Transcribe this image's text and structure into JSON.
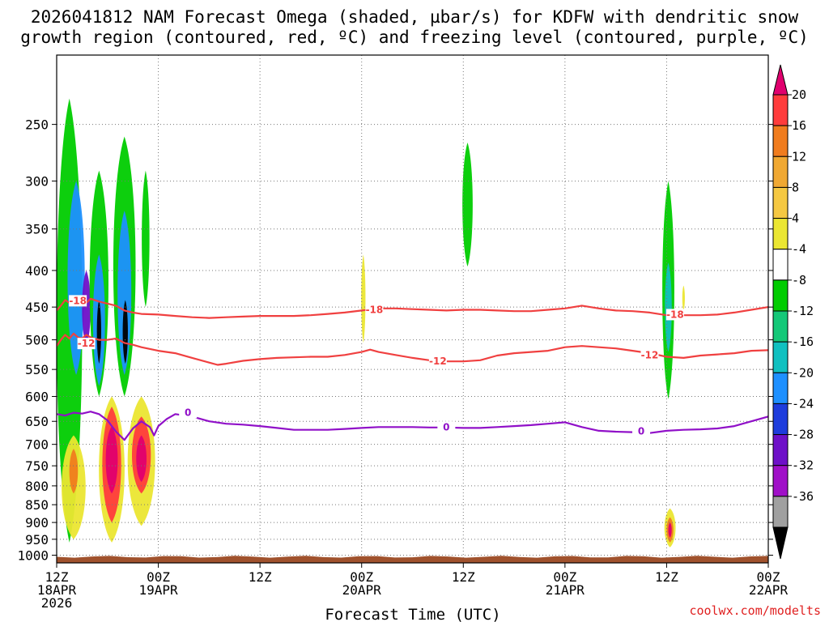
{
  "chart_data": {
    "type": "time-height cross-section (contour + shaded)",
    "title_line1": "2026041812 NAM Forecast Omega (shaded, µbar/s) for KDFW with dendritic snow",
    "title_line2": "growth region (contoured, red, ºC) and freezing level (contoured, purple, ºC)",
    "xlabel": "Forecast Time (UTC)",
    "credit": "coolwx.com/modelts",
    "x_ticks": [
      {
        "h": 0,
        "l1": "12Z",
        "l2": "18APR",
        "l3": "2026"
      },
      {
        "h": 12,
        "l1": "00Z",
        "l2": "19APR",
        "l3": ""
      },
      {
        "h": 24,
        "l1": "12Z",
        "l2": "",
        "l3": ""
      },
      {
        "h": 36,
        "l1": "00Z",
        "l2": "20APR",
        "l3": ""
      },
      {
        "h": 48,
        "l1": "12Z",
        "l2": "",
        "l3": ""
      },
      {
        "h": 60,
        "l1": "00Z",
        "l2": "21APR",
        "l3": ""
      },
      {
        "h": 72,
        "l1": "12Z",
        "l2": "",
        "l3": ""
      },
      {
        "h": 84,
        "l1": "00Z",
        "l2": "22APR",
        "l3": ""
      }
    ],
    "x_range_hours": [
      0,
      84
    ],
    "y_ticks_hPa": [
      250,
      300,
      350,
      400,
      450,
      500,
      550,
      600,
      650,
      700,
      750,
      800,
      850,
      900,
      950,
      1000
    ],
    "y_range_hPa": [
      200,
      1025
    ],
    "colorbar": {
      "levels": [
        "20",
        "16",
        "12",
        "8",
        "4",
        "-4",
        "-8",
        "-12",
        "-16",
        "-20",
        "-24",
        "-28",
        "-32",
        "-36"
      ],
      "colors": [
        "#e0006e",
        "#ff3c3c",
        "#f07c1e",
        "#f0a832",
        "#f5c842",
        "#ebe632",
        "#ffffff",
        "#00cc00",
        "#14c878",
        "#10c0c0",
        "#1e90ff",
        "#1e3cdc",
        "#6e10c8",
        "#a010c8",
        "#a0a0a0",
        "#000000"
      ]
    },
    "dgz_contours": [
      {
        "value": -18,
        "label": "-18",
        "color": "#f04040",
        "points": [
          [
            0,
            455
          ],
          [
            0.5,
            448
          ],
          [
            1,
            440
          ],
          [
            1.5,
            444
          ],
          [
            2,
            438
          ],
          [
            2.5,
            442
          ],
          [
            3,
            440
          ],
          [
            3.5,
            444
          ],
          [
            4,
            438
          ],
          [
            5,
            442
          ],
          [
            6,
            445
          ],
          [
            7,
            448
          ],
          [
            8,
            455
          ],
          [
            9,
            458
          ],
          [
            10,
            460
          ],
          [
            12,
            461
          ],
          [
            14,
            463
          ],
          [
            16,
            465
          ],
          [
            18,
            466
          ],
          [
            20,
            465
          ],
          [
            22,
            464
          ],
          [
            24,
            463
          ],
          [
            26,
            463
          ],
          [
            28,
            463
          ],
          [
            30,
            462
          ],
          [
            32,
            460
          ],
          [
            34,
            458
          ],
          [
            36,
            455
          ],
          [
            38,
            452
          ],
          [
            40,
            452
          ],
          [
            42,
            453
          ],
          [
            44,
            454
          ],
          [
            46,
            455
          ],
          [
            48,
            454
          ],
          [
            50,
            454
          ],
          [
            52,
            455
          ],
          [
            54,
            456
          ],
          [
            56,
            456
          ],
          [
            58,
            454
          ],
          [
            60,
            452
          ],
          [
            62,
            448
          ],
          [
            64,
            452
          ],
          [
            66,
            455
          ],
          [
            68,
            456
          ],
          [
            70,
            458
          ],
          [
            72,
            462
          ],
          [
            74,
            462
          ],
          [
            76,
            462
          ],
          [
            78,
            461
          ],
          [
            80,
            458
          ],
          [
            82,
            454
          ],
          [
            84,
            450
          ]
        ],
        "labels_at": [
          [
            2.5,
            441
          ],
          [
            37.5,
            454
          ],
          [
            73,
            461
          ]
        ]
      },
      {
        "value": -12,
        "label": "-12",
        "color": "#f04040",
        "points": [
          [
            0,
            510
          ],
          [
            0.5,
            500
          ],
          [
            1,
            492
          ],
          [
            1.5,
            498
          ],
          [
            2,
            490
          ],
          [
            2.5,
            496
          ],
          [
            3,
            498
          ],
          [
            3.5,
            492
          ],
          [
            4,
            496
          ],
          [
            5,
            500
          ],
          [
            6,
            500
          ],
          [
            7,
            498
          ],
          [
            8,
            505
          ],
          [
            9,
            508
          ],
          [
            10,
            512
          ],
          [
            12,
            518
          ],
          [
            14,
            522
          ],
          [
            16,
            530
          ],
          [
            18,
            538
          ],
          [
            19,
            542
          ],
          [
            20,
            540
          ],
          [
            22,
            535
          ],
          [
            24,
            532
          ],
          [
            26,
            530
          ],
          [
            28,
            529
          ],
          [
            30,
            528
          ],
          [
            32,
            528
          ],
          [
            34,
            525
          ],
          [
            36,
            520
          ],
          [
            37,
            516
          ],
          [
            38,
            520
          ],
          [
            40,
            525
          ],
          [
            42,
            530
          ],
          [
            44,
            534
          ],
          [
            46,
            536
          ],
          [
            48,
            536
          ],
          [
            50,
            534
          ],
          [
            52,
            526
          ],
          [
            54,
            522
          ],
          [
            56,
            520
          ],
          [
            58,
            518
          ],
          [
            60,
            512
          ],
          [
            62,
            510
          ],
          [
            64,
            512
          ],
          [
            66,
            514
          ],
          [
            68,
            518
          ],
          [
            70,
            522
          ],
          [
            72,
            528
          ],
          [
            74,
            530
          ],
          [
            76,
            526
          ],
          [
            78,
            524
          ],
          [
            80,
            522
          ],
          [
            82,
            518
          ],
          [
            84,
            517
          ]
        ],
        "labels_at": [
          [
            3.5,
            506
          ],
          [
            45,
            536
          ],
          [
            70,
            525
          ]
        ]
      }
    ],
    "freezing_level": {
      "value": 0,
      "label": "0",
      "color": "#9010c8",
      "points": [
        [
          0,
          635
        ],
        [
          1,
          638
        ],
        [
          2,
          632
        ],
        [
          3,
          634
        ],
        [
          4,
          630
        ],
        [
          5,
          635
        ],
        [
          6,
          648
        ],
        [
          7,
          672
        ],
        [
          8,
          690
        ],
        [
          9,
          665
        ],
        [
          10,
          650
        ],
        [
          11,
          662
        ],
        [
          11.5,
          680
        ],
        [
          12,
          660
        ],
        [
          13,
          645
        ],
        [
          14,
          635
        ],
        [
          16,
          640
        ],
        [
          18,
          650
        ],
        [
          20,
          655
        ],
        [
          22,
          657
        ],
        [
          24,
          660
        ],
        [
          26,
          664
        ],
        [
          28,
          668
        ],
        [
          30,
          668
        ],
        [
          32,
          668
        ],
        [
          34,
          666
        ],
        [
          36,
          664
        ],
        [
          38,
          662
        ],
        [
          40,
          662
        ],
        [
          42,
          662
        ],
        [
          44,
          663
        ],
        [
          46,
          663
        ],
        [
          48,
          664
        ],
        [
          50,
          664
        ],
        [
          52,
          662
        ],
        [
          54,
          660
        ],
        [
          56,
          658
        ],
        [
          58,
          655
        ],
        [
          60,
          652
        ],
        [
          62,
          662
        ],
        [
          64,
          670
        ],
        [
          66,
          672
        ],
        [
          68,
          673
        ],
        [
          70,
          675
        ],
        [
          72,
          670
        ],
        [
          74,
          668
        ],
        [
          76,
          667
        ],
        [
          78,
          665
        ],
        [
          80,
          660
        ],
        [
          82,
          650
        ],
        [
          84,
          640
        ]
      ],
      "labels_at": [
        [
          15.5,
          632
        ],
        [
          46,
          662
        ],
        [
          69,
          671
        ]
      ]
    },
    "omega_features": [
      {
        "name": "ascent-cell-1-outer",
        "cx_h": 1.5,
        "lo": 230,
        "hi": 960,
        "w": 3.0,
        "color": "#00cc00"
      },
      {
        "name": "ascent-cell-1-mid",
        "cx_h": 2.3,
        "lo": 300,
        "hi": 560,
        "w": 2.0,
        "color": "#1e90ff"
      },
      {
        "name": "ascent-cell-1-core",
        "cx_h": 3.5,
        "lo": 400,
        "hi": 510,
        "w": 1.0,
        "color": "#6e10c8"
      },
      {
        "name": "ascent-cell-2-outer",
        "cx_h": 5.0,
        "lo": 290,
        "hi": 600,
        "w": 2.2,
        "color": "#00cc00"
      },
      {
        "name": "ascent-cell-2-mid",
        "cx_h": 5.0,
        "lo": 380,
        "hi": 580,
        "w": 1.4,
        "color": "#1e90ff"
      },
      {
        "name": "ascent-cell-2-core",
        "cx_h": 5.0,
        "lo": 440,
        "hi": 540,
        "w": 0.5,
        "color": "#000000"
      },
      {
        "name": "ascent-cell-3-outer",
        "cx_h": 8.0,
        "lo": 260,
        "hi": 600,
        "w": 2.6,
        "color": "#00cc00"
      },
      {
        "name": "ascent-cell-3-mid",
        "cx_h": 8.0,
        "lo": 330,
        "hi": 560,
        "w": 1.6,
        "color": "#1e90ff"
      },
      {
        "name": "ascent-cell-3-core",
        "cx_h": 8.1,
        "lo": 440,
        "hi": 540,
        "w": 0.6,
        "color": "#000000"
      },
      {
        "name": "ascent-cell-4-outer",
        "cx_h": 10.5,
        "lo": 290,
        "hi": 450,
        "w": 0.9,
        "color": "#00cc00"
      },
      {
        "name": "ascent-cell-5-outer",
        "cx_h": 36.2,
        "lo": 380,
        "hi": 505,
        "w": 0.5,
        "color": "#ebe632"
      },
      {
        "name": "ascent-cell-6-outer",
        "cx_h": 48.5,
        "lo": 265,
        "hi": 395,
        "w": 1.2,
        "color": "#00cc00"
      },
      {
        "name": "ascent-cell-7-outer",
        "cx_h": 72.2,
        "lo": 300,
        "hi": 605,
        "w": 1.4,
        "color": "#00cc00"
      },
      {
        "name": "ascent-cell-7-mid",
        "cx_h": 72.2,
        "lo": 390,
        "hi": 520,
        "w": 0.8,
        "color": "#10c0c0"
      },
      {
        "name": "ascent-cell-8-outer",
        "cx_h": 74.0,
        "lo": 420,
        "hi": 455,
        "w": 0.3,
        "color": "#ebe632"
      },
      {
        "name": "descent-cell-1-outer",
        "cx_h": 2.0,
        "lo": 680,
        "hi": 950,
        "w": 2.8,
        "color": "#ebe632"
      },
      {
        "name": "descent-cell-1-mid",
        "cx_h": 2.0,
        "lo": 710,
        "hi": 820,
        "w": 1.0,
        "color": "#f07c1e"
      },
      {
        "name": "descent-cell-2-outer",
        "cx_h": 6.5,
        "lo": 600,
        "hi": 960,
        "w": 3.0,
        "color": "#ebe632"
      },
      {
        "name": "descent-cell-2-mid",
        "cx_h": 6.5,
        "lo": 620,
        "hi": 900,
        "w": 2.2,
        "color": "#ff3c3c"
      },
      {
        "name": "descent-cell-2-core",
        "cx_h": 6.5,
        "lo": 660,
        "hi": 820,
        "w": 1.4,
        "color": "#e0006e"
      },
      {
        "name": "descent-cell-3-outer",
        "cx_h": 10.0,
        "lo": 600,
        "hi": 910,
        "w": 3.2,
        "color": "#ebe632"
      },
      {
        "name": "descent-cell-3-mid",
        "cx_h": 10.0,
        "lo": 640,
        "hi": 820,
        "w": 2.2,
        "color": "#ff3c3c"
      },
      {
        "name": "descent-cell-3-core",
        "cx_h": 10.0,
        "lo": 680,
        "hi": 790,
        "w": 1.2,
        "color": "#e0006e"
      },
      {
        "name": "descent-cell-4-outer",
        "cx_h": 72.4,
        "lo": 860,
        "hi": 975,
        "w": 1.3,
        "color": "#ebe632"
      },
      {
        "name": "descent-cell-4-mid",
        "cx_h": 72.4,
        "lo": 885,
        "hi": 960,
        "w": 0.8,
        "color": "#f07c1e"
      },
      {
        "name": "descent-cell-4-core",
        "cx_h": 72.4,
        "lo": 900,
        "hi": 945,
        "w": 0.4,
        "color": "#e0006e"
      }
    ],
    "ground_color": "#a0522d",
    "ground_top_hPa": 1005
  }
}
